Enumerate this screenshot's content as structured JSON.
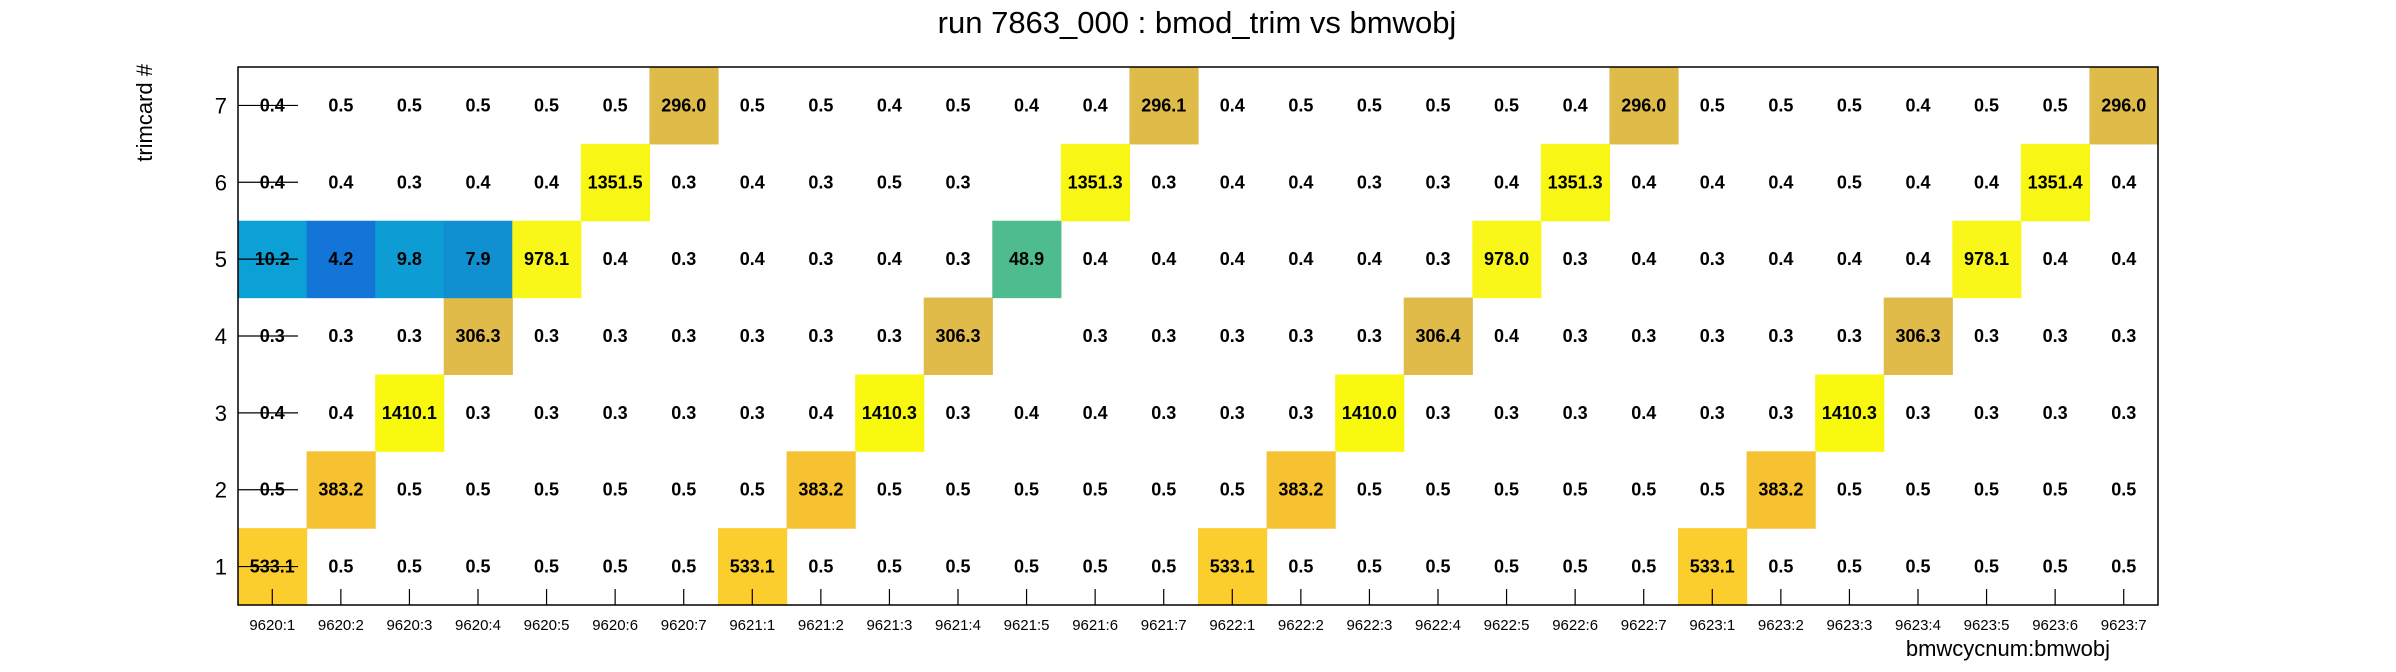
{
  "chart_data": {
    "type": "heatmap",
    "title": "run 7863_000 : bmod_trim vs bmwobj",
    "xlabel": "bmwcycnum:bmwobj",
    "ylabel": "trimcard #",
    "x_categories": [
      "9620:1",
      "9620:2",
      "9620:3",
      "9620:4",
      "9620:5",
      "9620:6",
      "9620:7",
      "9621:1",
      "9621:2",
      "9621:3",
      "9621:4",
      "9621:5",
      "9621:6",
      "9621:7",
      "9622:1",
      "9622:2",
      "9622:3",
      "9622:4",
      "9622:5",
      "9622:6",
      "9622:7",
      "9623:1",
      "9623:2",
      "9623:3",
      "9623:4",
      "9623:5",
      "9623:6",
      "9623:7"
    ],
    "y_categories": [
      "1",
      "2",
      "3",
      "4",
      "5",
      "6",
      "7"
    ],
    "values": [
      [
        "533.1",
        "0.5",
        "0.5",
        "0.5",
        "0.5",
        "0.5",
        "0.5",
        "533.1",
        "0.5",
        "0.5",
        "0.5",
        "0.5",
        "0.5",
        "0.5",
        "533.1",
        "0.5",
        "0.5",
        "0.5",
        "0.5",
        "0.5",
        "0.5",
        "533.1",
        "0.5",
        "0.5",
        "0.5",
        "0.5",
        "0.5",
        "0.5"
      ],
      [
        "0.5",
        "383.2",
        "0.5",
        "0.5",
        "0.5",
        "0.5",
        "0.5",
        "0.5",
        "383.2",
        "0.5",
        "0.5",
        "0.5",
        "0.5",
        "0.5",
        "0.5",
        "383.2",
        "0.5",
        "0.5",
        "0.5",
        "0.5",
        "0.5",
        "0.5",
        "383.2",
        "0.5",
        "0.5",
        "0.5",
        "0.5",
        "0.5"
      ],
      [
        "0.4",
        "0.4",
        "1410.1",
        "0.3",
        "0.3",
        "0.3",
        "0.3",
        "0.3",
        "0.4",
        "1410.3",
        "0.3",
        "0.4",
        "0.4",
        "0.3",
        "0.3",
        "0.3",
        "1410.0",
        "0.3",
        "0.3",
        "0.3",
        "0.4",
        "0.3",
        "0.3",
        "1410.3",
        "0.3",
        "0.3",
        "0.3",
        "0.3"
      ],
      [
        "0.3",
        "0.3",
        "0.3",
        "306.3",
        "0.3",
        "0.3",
        "0.3",
        "0.3",
        "0.3",
        "0.3",
        "306.3",
        "",
        "0.3",
        "0.3",
        "0.3",
        "0.3",
        "0.3",
        "306.4",
        "0.4",
        "0.3",
        "0.3",
        "0.3",
        "0.3",
        "0.3",
        "306.3",
        "0.3",
        "0.3",
        "0.3"
      ],
      [
        "10.2",
        "4.2",
        "9.8",
        "7.9",
        "978.1",
        "0.4",
        "0.3",
        "0.4",
        "0.3",
        "0.4",
        "0.3",
        "48.9",
        "0.4",
        "0.4",
        "0.4",
        "0.4",
        "0.4",
        "0.3",
        "978.0",
        "0.3",
        "0.4",
        "0.3",
        "0.4",
        "0.4",
        "0.4",
        "978.1",
        "0.4",
        "0.4"
      ],
      [
        "0.4",
        "0.4",
        "0.3",
        "0.4",
        "0.4",
        "1351.5",
        "0.3",
        "0.4",
        "0.3",
        "0.5",
        "0.3",
        "",
        "1351.3",
        "0.3",
        "0.4",
        "0.4",
        "0.3",
        "0.3",
        "0.4",
        "1351.3",
        "0.4",
        "0.4",
        "0.4",
        "0.5",
        "0.4",
        "0.4",
        "1351.4",
        "0.4"
      ],
      [
        "0.4",
        "0.5",
        "0.5",
        "0.5",
        "0.5",
        "0.5",
        "296.0",
        "0.5",
        "0.5",
        "0.4",
        "0.5",
        "0.4",
        "0.4",
        "296.1",
        "0.4",
        "0.5",
        "0.5",
        "0.5",
        "0.5",
        "0.4",
        "296.0",
        "0.5",
        "0.5",
        "0.5",
        "0.4",
        "0.5",
        "0.5",
        "296.0"
      ]
    ],
    "colors": {
      "533.1": "#fcce2d",
      "383.2": "#f6c231",
      "1410.0": "#f9f90f",
      "306.3": "#e0bb49",
      "978.0": "#f9f71a",
      "1351.3": "#f8f614",
      "296.0": "#dfbb49",
      "48.9": "#4ebc8e",
      "10.2": "#0ba0d6",
      "4.2": "#1475d9",
      "9.8": "#0e9cd4",
      "7.9": "#1090d0"
    },
    "grid": false,
    "legend": "none"
  }
}
